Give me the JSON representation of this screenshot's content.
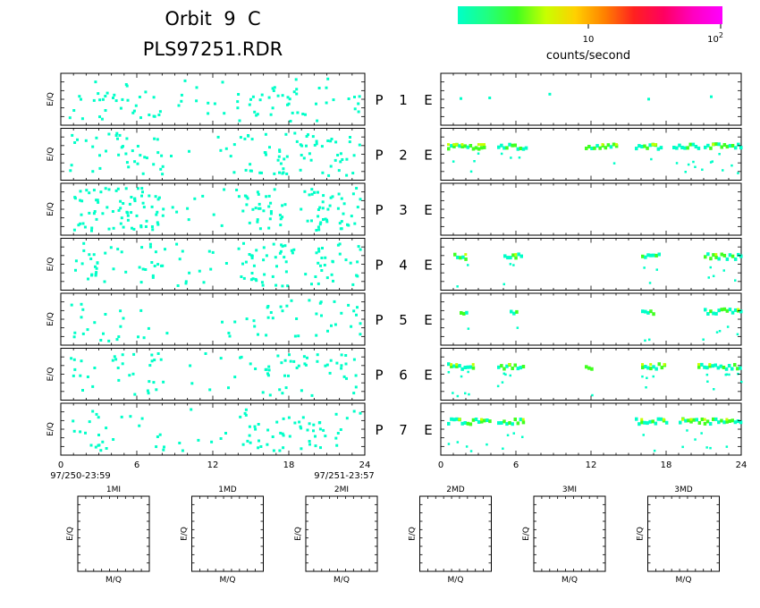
{
  "header": {
    "title_line1": "Orbit  9  C",
    "title_line2": "PLS97251.RDR"
  },
  "colorbar": {
    "tick_10": "10",
    "tick_100_base": "10",
    "tick_100_exp": "2",
    "unit_label": "counts/second",
    "gradient": [
      "#00ffc8",
      "#20ff80",
      "#40ff20",
      "#c8ff00",
      "#ffd000",
      "#ff8000",
      "#ff2020",
      "#ff0060",
      "#ff00c0",
      "#ff00ff"
    ]
  },
  "panel_ylabel": "E/Q",
  "rows": [
    {
      "p": "P",
      "num": "1",
      "e": "E"
    },
    {
      "p": "P",
      "num": "2",
      "e": "E"
    },
    {
      "p": "P",
      "num": "3",
      "e": "E"
    },
    {
      "p": "P",
      "num": "4",
      "e": "E"
    },
    {
      "p": "P",
      "num": "5",
      "e": "E"
    },
    {
      "p": "P",
      "num": "6",
      "e": "E"
    },
    {
      "p": "P",
      "num": "7",
      "e": "E"
    }
  ],
  "x_axis": {
    "ticks": [
      "0",
      "6",
      "12",
      "18",
      "24"
    ],
    "start_label": "97/250-23:59",
    "end_label": "97/251-23:57"
  },
  "bottom_panels": [
    {
      "title": "1MI",
      "ylabel": "E/Q",
      "xlabel": "M/Q"
    },
    {
      "title": "1MD",
      "ylabel": "E/Q",
      "xlabel": "M/Q"
    },
    {
      "title": "2MI",
      "ylabel": "E/Q",
      "xlabel": "M/Q"
    },
    {
      "title": "2MD",
      "ylabel": "E/Q",
      "xlabel": "M/Q"
    },
    {
      "title": "3MI",
      "ylabel": "E/Q",
      "xlabel": "M/Q"
    },
    {
      "title": "3MD",
      "ylabel": "E/Q",
      "xlabel": "M/Q"
    }
  ],
  "chart_data": {
    "type": "heatmap",
    "description_units": "counts/second",
    "x_range_hours": [
      0,
      24
    ],
    "colorbar_ticks": [
      "10",
      "10^2"
    ],
    "left_panels": {
      "color": "#00ffc8",
      "activity_centers_hours": [
        1.5,
        6,
        16,
        19,
        22
      ],
      "density": [
        0.14,
        0.18,
        0.26,
        0.2,
        0.1,
        0.14,
        0.14
      ]
    },
    "right_panels": [
      {
        "panel": "P1",
        "sparse_points_hours": [
          1.5,
          3.8,
          8.6,
          16.5,
          21.5
        ]
      },
      {
        "panel": "P2",
        "band_segments_hours": [
          [
            0.5,
            3.5
          ],
          [
            4.5,
            6.8
          ],
          [
            11.5,
            14
          ],
          [
            15.5,
            17.5
          ],
          [
            18.5,
            20.5
          ],
          [
            21,
            24
          ]
        ]
      },
      {
        "panel": "P3",
        "band_segments_hours": []
      },
      {
        "panel": "P4",
        "band_segments_hours": [
          [
            1,
            2
          ],
          [
            5,
            6.5
          ],
          [
            16,
            17.5
          ],
          [
            21,
            24
          ]
        ]
      },
      {
        "panel": "P5",
        "band_segments_hours": [
          [
            1.5,
            2
          ],
          [
            5.5,
            6
          ],
          [
            16,
            17
          ],
          [
            21,
            24
          ]
        ]
      },
      {
        "panel": "P6",
        "band_segments_hours": [
          [
            0.5,
            2.5
          ],
          [
            4.5,
            6.5
          ],
          [
            11.5,
            12
          ],
          [
            16,
            17.8
          ],
          [
            20.5,
            24
          ]
        ]
      },
      {
        "panel": "P7",
        "band_segments_hours": [
          [
            0.5,
            4
          ],
          [
            4.5,
            6.5
          ],
          [
            15.5,
            18
          ],
          [
            19,
            24
          ]
        ]
      }
    ]
  }
}
